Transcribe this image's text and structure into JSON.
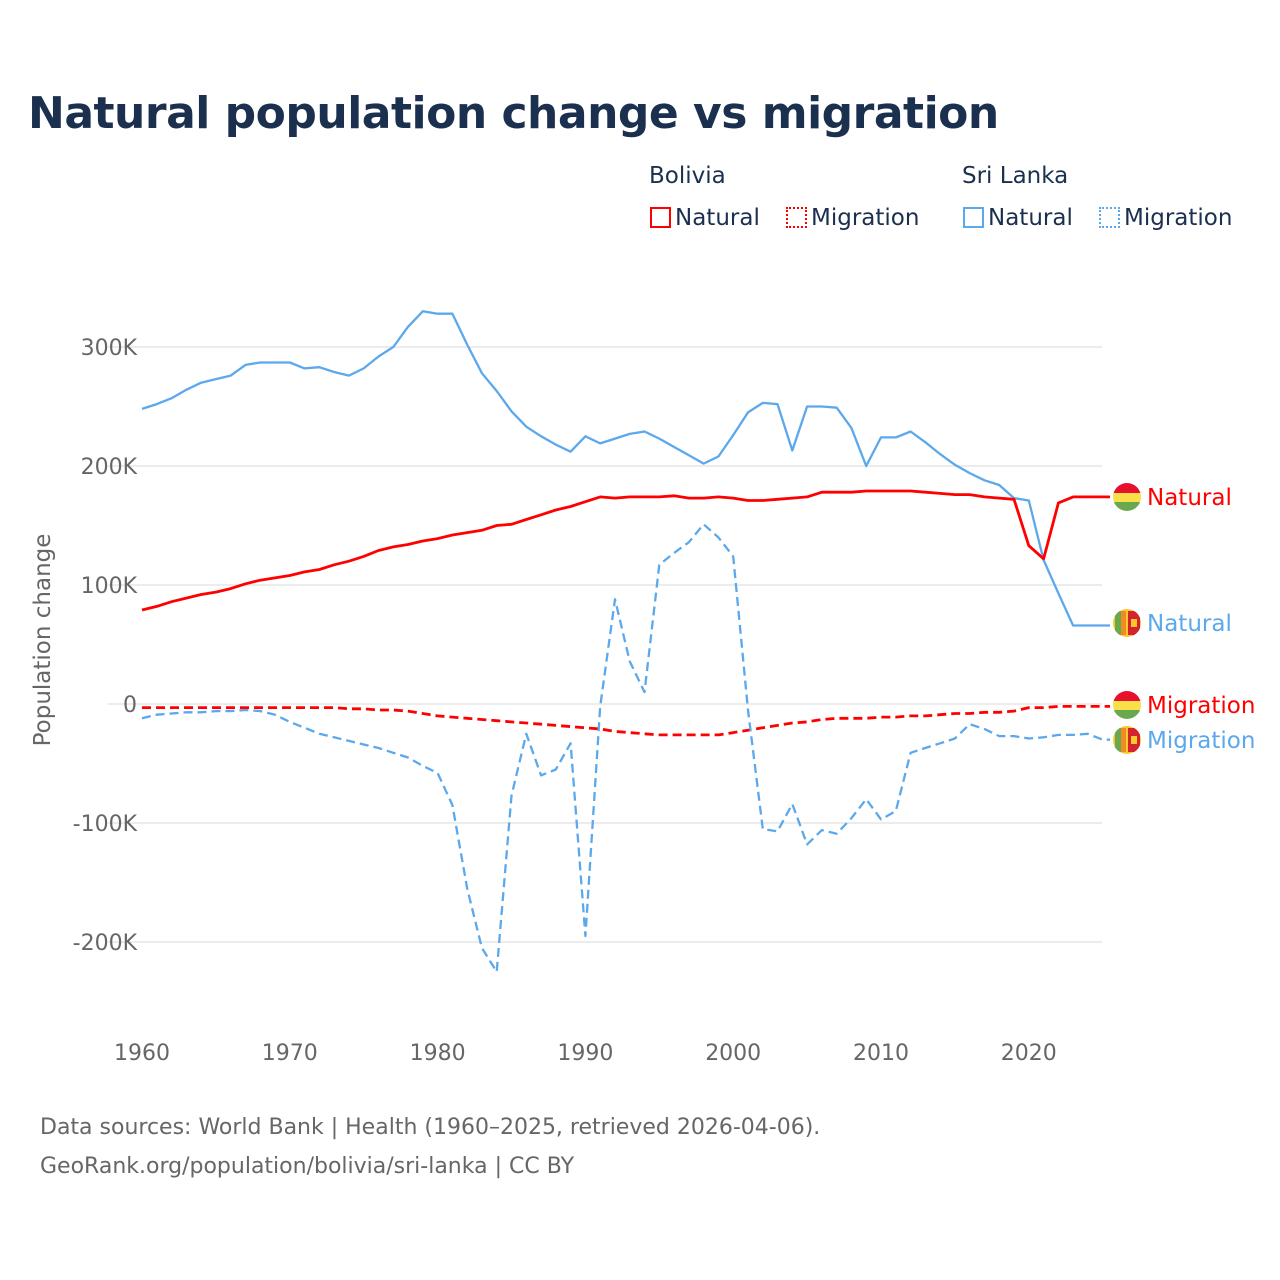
{
  "title": "Natural population change vs migration",
  "legend": {
    "groups": [
      {
        "name": "Bolivia",
        "items": [
          "Natural",
          "Migration"
        ]
      },
      {
        "name": "Sri Lanka",
        "items": [
          "Natural",
          "Migration"
        ]
      }
    ]
  },
  "colors": {
    "bolivia": "#ff0000",
    "sri_lanka": "#5ca8ec",
    "grid": "#e6e6e6",
    "tick": "#666666"
  },
  "source": {
    "line1": "Data sources: World Bank | Health (1960–2025, retrieved 2026-04-06).",
    "line2": "GeoRank.org/population/bolivia/sri-lanka | CC BY"
  },
  "chart_data": {
    "type": "line",
    "title": "Natural population change vs migration",
    "xlabel": "",
    "ylabel": "Population change",
    "xlim": [
      1960,
      2025
    ],
    "ylim": [
      -250000,
      340000
    ],
    "xticks": [
      1960,
      1970,
      1980,
      1990,
      2000,
      2010,
      2020
    ],
    "xtick_labels": [
      "1960",
      "1970",
      "1980",
      "1990",
      "2000",
      "2010",
      "2020"
    ],
    "yticks": [
      -200000,
      -100000,
      0,
      100000,
      200000,
      300000
    ],
    "ytick_labels": [
      "-200K",
      "-100K",
      "0",
      "100K",
      "200K",
      "300K"
    ],
    "grid": true,
    "legend_position": "top-right",
    "x_start": 1960,
    "series": [
      {
        "name": "Sri Lanka Natural",
        "country": "Sri Lanka",
        "kind": "Natural",
        "style": "solid",
        "color": "#5ca8ec",
        "end_label": "Natural",
        "values_k": [
          248,
          252,
          257,
          264,
          270,
          273,
          276,
          285,
          287,
          287,
          287,
          282,
          283,
          279,
          276,
          282,
          292,
          300,
          317,
          330,
          328,
          328,
          302,
          278,
          263,
          246,
          233,
          225,
          218,
          212,
          225,
          219,
          223,
          227,
          229,
          223,
          216,
          209,
          202,
          208,
          226,
          245,
          253,
          252,
          213,
          250,
          250,
          249,
          232,
          200,
          224,
          224,
          229,
          220,
          210,
          201,
          194,
          188,
          184,
          173,
          171,
          121,
          93,
          66,
          66,
          66
        ]
      },
      {
        "name": "Bolivia Natural",
        "country": "Bolivia",
        "kind": "Natural",
        "style": "solid",
        "color": "#ff0000",
        "end_label": "Natural",
        "values_k": [
          79,
          82,
          86,
          89,
          92,
          94,
          97,
          101,
          104,
          106,
          108,
          111,
          113,
          117,
          120,
          124,
          129,
          132,
          134,
          137,
          139,
          142,
          144,
          146,
          150,
          151,
          155,
          159,
          163,
          166,
          170,
          174,
          173,
          174,
          174,
          174,
          175,
          173,
          173,
          174,
          173,
          171,
          171,
          172,
          173,
          174,
          178,
          178,
          178,
          179,
          179,
          179,
          179,
          178,
          177,
          176,
          176,
          174,
          173,
          172,
          133,
          122,
          169,
          174,
          174,
          174
        ]
      },
      {
        "name": "Bolivia Migration",
        "country": "Bolivia",
        "kind": "Migration",
        "style": "dashed",
        "color": "#ff0000",
        "end_label": "Migration",
        "values_k": [
          -3,
          -3,
          -3,
          -3,
          -3,
          -3,
          -3,
          -3,
          -3,
          -3,
          -3,
          -3,
          -3,
          -3,
          -4,
          -4,
          -5,
          -5,
          -6,
          -8,
          -10,
          -11,
          -12,
          -13,
          -14,
          -15,
          -16,
          -17,
          -18,
          -19,
          -20,
          -21,
          -23,
          -24,
          -25,
          -26,
          -26,
          -26,
          -26,
          -26,
          -24,
          -22,
          -20,
          -18,
          -16,
          -15,
          -13,
          -12,
          -12,
          -12,
          -11,
          -11,
          -10,
          -10,
          -9,
          -8,
          -8,
          -7,
          -7,
          -6,
          -3,
          -3,
          -2,
          -2,
          -2,
          -2
        ]
      },
      {
        "name": "Sri Lanka Migration",
        "country": "Sri Lanka",
        "kind": "Migration",
        "style": "dashed",
        "color": "#5ca8ec",
        "end_label": "Migration",
        "values_k": [
          -12,
          -9,
          -8,
          -7,
          -7,
          -6,
          -6,
          -5,
          -6,
          -9,
          -15,
          -20,
          -25,
          -28,
          -31,
          -34,
          -37,
          -41,
          -45,
          -52,
          -58,
          -85,
          -155,
          -205,
          -225,
          -77,
          -25,
          -60,
          -55,
          -33,
          -195,
          -2,
          88,
          36,
          10,
          117,
          127,
          136,
          151,
          140,
          124,
          -5,
          -105,
          -107,
          -84,
          -118,
          -106,
          -109,
          -96,
          -80,
          -97,
          -90,
          -41,
          -37,
          -33,
          -29,
          -17,
          -21,
          -27,
          -27,
          -29,
          -28,
          -26,
          -26,
          -25,
          -30
        ]
      }
    ]
  }
}
